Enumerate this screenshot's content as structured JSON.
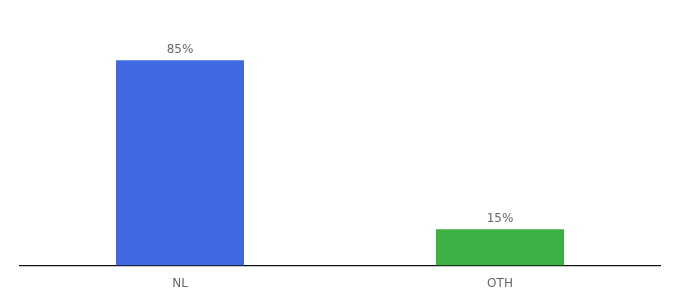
{
  "chart_data": {
    "type": "bar",
    "categories": [
      "NL",
      "OTH"
    ],
    "values": [
      85,
      15
    ],
    "value_labels": [
      "85%",
      "15%"
    ],
    "colors": [
      "#4169E1",
      "#3CB043"
    ],
    "ylim": [
      0,
      100
    ],
    "grid": false,
    "data_labels": true,
    "tick_labels": "x"
  }
}
